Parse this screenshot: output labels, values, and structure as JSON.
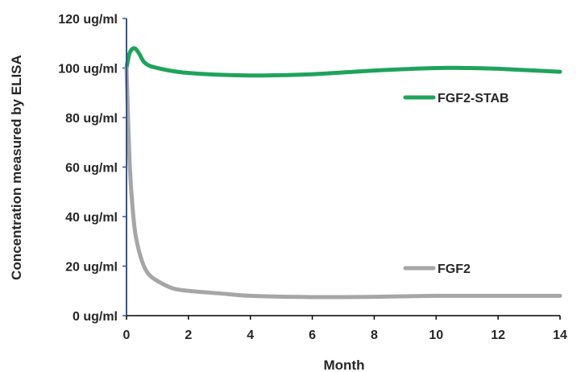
{
  "chart_data": {
    "type": "line",
    "xlabel": "Month",
    "ylabel": "Concentration measured by ELISA",
    "xlim": [
      0,
      14
    ],
    "ylim": [
      0,
      120
    ],
    "x_ticks": [
      "0",
      "2",
      "4",
      "6",
      "8",
      "10",
      "12",
      "14"
    ],
    "y_ticks": [
      "0 ug/ml",
      "20 ug/ml",
      "40 ug/ml",
      "60 ug/ml",
      "80 ug/ml",
      "100 ug/ml",
      "120 ug/ml"
    ],
    "grid": false,
    "legend_placement": "inline, right side",
    "series": [
      {
        "name": "FGF2-STAB",
        "color": "#1fa35c",
        "x": [
          0,
          0.1,
          0.25,
          0.4,
          0.6,
          1,
          2,
          4,
          6,
          8,
          10,
          11,
          12,
          14
        ],
        "y": [
          100,
          106,
          108,
          106,
          102,
          100,
          98,
          97,
          97.5,
          99,
          100,
          100,
          99.7,
          98.5
        ]
      },
      {
        "name": "FGF2",
        "color": "#a6a6a6",
        "x": [
          0,
          0.1,
          0.2,
          0.3,
          0.5,
          0.7,
          1,
          1.5,
          2,
          3,
          4,
          6,
          8,
          10,
          12,
          14
        ],
        "y": [
          100,
          62,
          43,
          32,
          22,
          17,
          14,
          11,
          10,
          9,
          8,
          7.5,
          7.6,
          8,
          8,
          8
        ]
      }
    ]
  }
}
